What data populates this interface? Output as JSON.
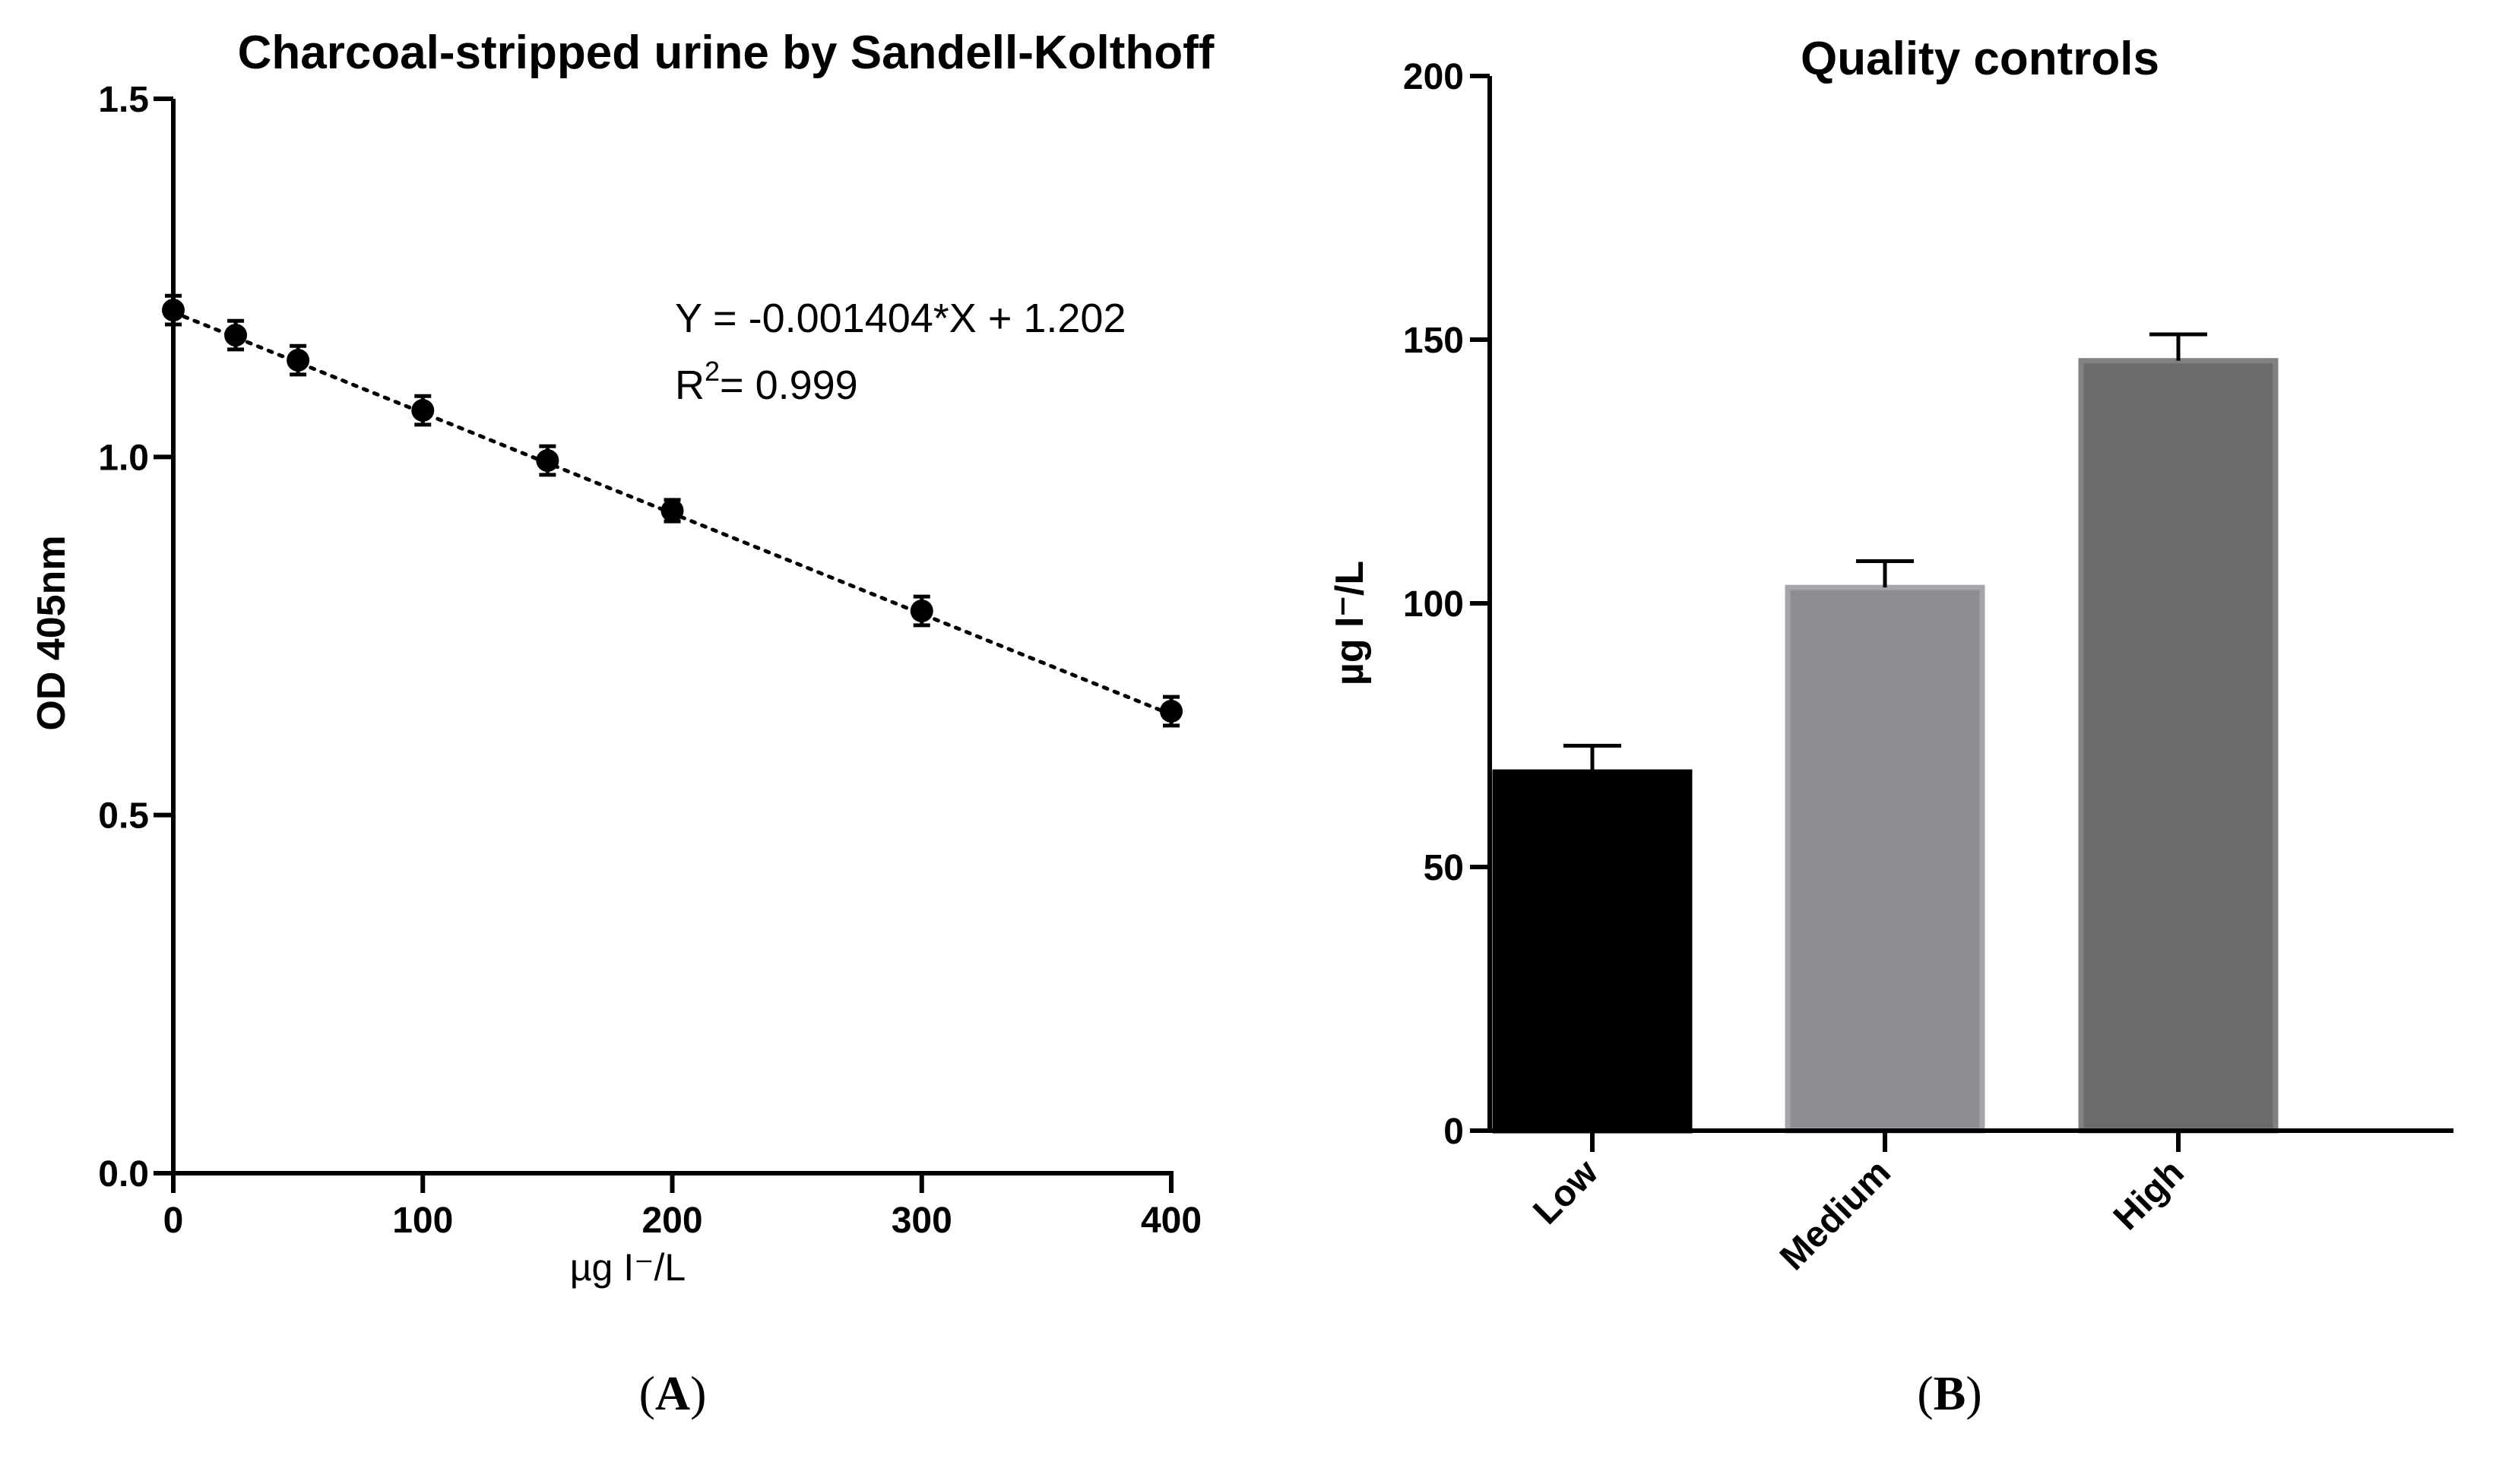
{
  "chart_data": [
    {
      "type": "scatter",
      "panel": "A",
      "title": "Charcoal-stripped urine by Sandell-Kolthoff",
      "xlabel": "µg I⁻/L",
      "ylabel": "OD 405nm",
      "xlim": [
        0,
        400
      ],
      "ylim": [
        0.0,
        1.5
      ],
      "xticks": [
        "0",
        "100",
        "200",
        "300",
        "400"
      ],
      "yticks": [
        "0.0",
        "0.5",
        "1.0",
        "1.5"
      ],
      "points": [
        {
          "x": 0,
          "y": 1.205,
          "err": 0.02
        },
        {
          "x": 25,
          "y": 1.17,
          "err": 0.02
        },
        {
          "x": 50,
          "y": 1.135,
          "err": 0.02
        },
        {
          "x": 100,
          "y": 1.065,
          "err": 0.02
        },
        {
          "x": 150,
          "y": 0.995,
          "err": 0.02
        },
        {
          "x": 200,
          "y": 0.925,
          "err": 0.015
        },
        {
          "x": 300,
          "y": 0.785,
          "err": 0.02
        },
        {
          "x": 400,
          "y": 0.645,
          "err": 0.02
        }
      ],
      "fit": {
        "slope": -0.001404,
        "intercept": 1.202,
        "style": "dotted"
      },
      "equation_text": "Y = -0.001404*X + 1.202",
      "r2_prefix": "R",
      "r2_sup": "2",
      "r2_value": "= 0.999"
    },
    {
      "type": "bar",
      "panel": "B",
      "title": "Quality controls",
      "ylabel": "µg I⁻/L",
      "ylim": [
        0,
        200
      ],
      "yticks": [
        "0",
        "50",
        "100",
        "150",
        "200"
      ],
      "categories": [
        "Low",
        "Medium",
        "High"
      ],
      "values": [
        68,
        103,
        146
      ],
      "errors": [
        5,
        5,
        5
      ],
      "colors": [
        "#000000",
        "#8e8e92",
        "#6b6b6b"
      ],
      "edge_colors": [
        "#000000",
        "#a6a6aa",
        "#828282"
      ]
    }
  ],
  "panel_labels": {
    "a_open": "(",
    "a_letter": "A",
    "a_close": ")",
    "b_open": "(",
    "b_letter": "B",
    "b_close": ")"
  }
}
